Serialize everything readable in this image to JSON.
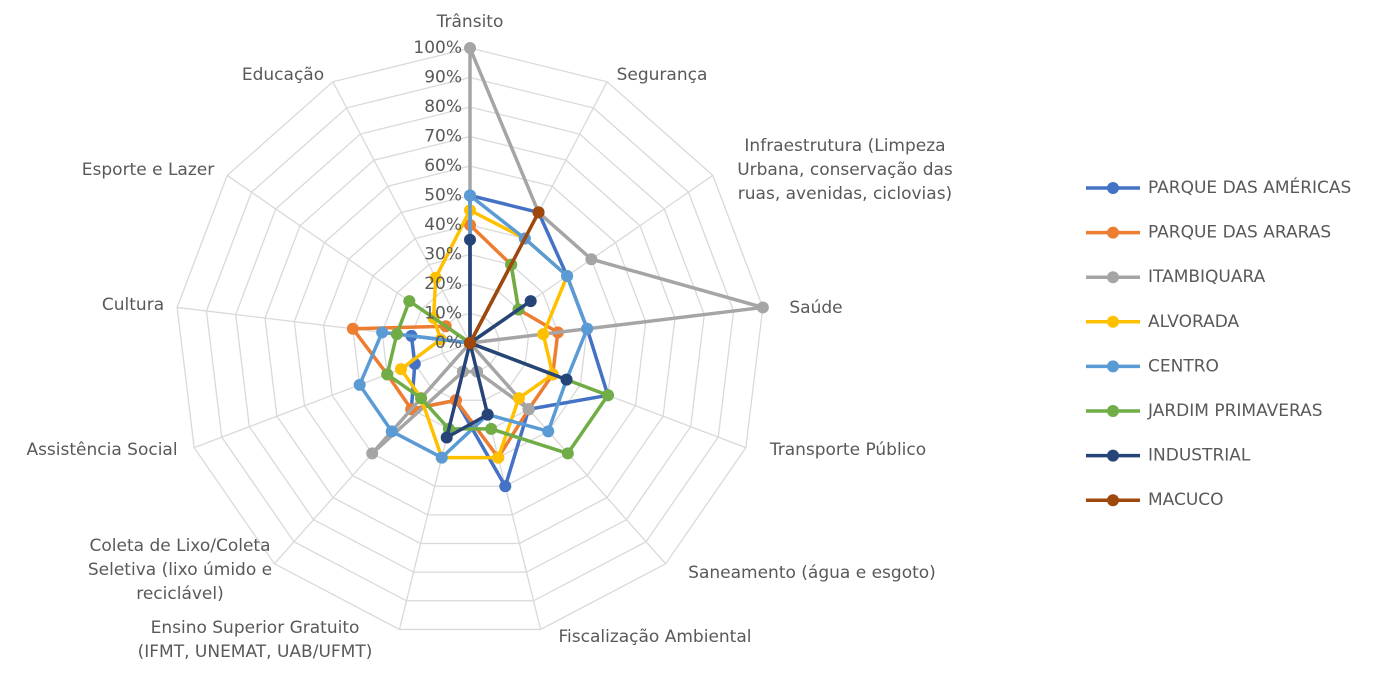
{
  "chart_data": {
    "type": "radar",
    "categories": [
      "Trânsito",
      "Segurança",
      "Infraestrutura (Limpeza Urbana, conservação das ruas, avenidas, ciclovias)",
      "Saúde",
      "Transporte Público",
      "Saneamento (água e esgoto)",
      "Fiscalização Ambiental",
      "Ensino Superior Gratuito (IFMT, UNEMAT, UAB/UFMT)",
      "Coleta de Lixo/Coleta Seletiva (lixo úmido e reciclável)",
      "Assistência Social",
      "Cultura",
      "Esporte e Lazer",
      "Educação"
    ],
    "ylim": [
      0,
      100
    ],
    "yticks": [
      {
        "value": 0,
        "label": "0%"
      },
      {
        "value": 10,
        "label": "10%"
      },
      {
        "value": 20,
        "label": "20%"
      },
      {
        "value": 30,
        "label": "30%"
      },
      {
        "value": 40,
        "label": "40%"
      },
      {
        "value": 50,
        "label": "50%"
      },
      {
        "value": 60,
        "label": "60%"
      },
      {
        "value": 70,
        "label": "70%"
      },
      {
        "value": 80,
        "label": "80%"
      },
      {
        "value": 90,
        "label": "90%"
      },
      {
        "value": 100,
        "label": "100%"
      }
    ],
    "grid": true,
    "legend": "right",
    "series": [
      {
        "name": "PARQUE DAS AMÉRICAS",
        "color": "#4472c4",
        "values": [
          50,
          50,
          40,
          40,
          50,
          30,
          50,
          20,
          30,
          20,
          20,
          0,
          0
        ]
      },
      {
        "name": "PARQUE DAS ARARAS",
        "color": "#ed7d31",
        "values": [
          40,
          30,
          20,
          30,
          30,
          30,
          40,
          20,
          30,
          30,
          40,
          10,
          0
        ]
      },
      {
        "name": "ITAMBIQUARA",
        "color": "#a5a5a5",
        "values": [
          100,
          50,
          50,
          100,
          0,
          30,
          10,
          10,
          50,
          0,
          0,
          0,
          0
        ]
      },
      {
        "name": "ALVORADA",
        "color": "#ffc000",
        "values": [
          45,
          40,
          40,
          25,
          30,
          25,
          40,
          40,
          25,
          25,
          10,
          15,
          25
        ]
      },
      {
        "name": "CENTRO",
        "color": "#5b9bd5",
        "values": [
          50,
          40,
          40,
          40,
          35,
          40,
          25,
          40,
          40,
          40,
          30,
          0,
          0
        ]
      },
      {
        "name": "JARDIM PRIMAVERAS",
        "color": "#70ad47",
        "values": [
          0,
          30,
          20,
          0,
          50,
          50,
          30,
          30,
          25,
          30,
          25,
          25,
          0
        ]
      },
      {
        "name": "INDUSTRIAL",
        "color": "#264478",
        "values": [
          35,
          0,
          25,
          0,
          35,
          0,
          25,
          33,
          0,
          0,
          0,
          0,
          0
        ]
      },
      {
        "name": "MACUCO",
        "color": "#9e480e",
        "values": [
          0,
          50,
          0,
          0,
          0,
          0,
          0,
          0,
          0,
          0,
          0,
          0,
          0
        ]
      }
    ]
  }
}
